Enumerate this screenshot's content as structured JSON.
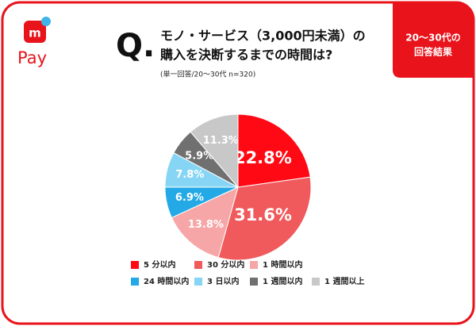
{
  "logo": {
    "icon_text": "m",
    "text": "Pay"
  },
  "badge": [
    "20～30代の",
    "回答結果"
  ],
  "chart_data": {
    "type": "pie",
    "question_mark": "Q.",
    "title": [
      "モノ・サービス（3,000円未満）の",
      "購入を決断するまでの時間は?"
    ],
    "subtitle": "(単一回答/20～30代 n=320)",
    "categories": [
      "5 分以内",
      "30 分以内",
      "1 時間以内",
      "24 時間以内",
      "3 日以内",
      "1 週間以内",
      "1 週間以上"
    ],
    "values": [
      22.8,
      31.6,
      13.8,
      6.9,
      7.8,
      5.9,
      11.3
    ],
    "value_labels": [
      "22.8%",
      "31.6%",
      "13.8%",
      "6.9%",
      "7.8%",
      "5.9%",
      "11.3%"
    ],
    "colors": [
      "#ff0a14",
      "#f05a5c",
      "#f6a6a6",
      "#22a9e6",
      "#86d5f5",
      "#707070",
      "#c8c8c8"
    ]
  }
}
